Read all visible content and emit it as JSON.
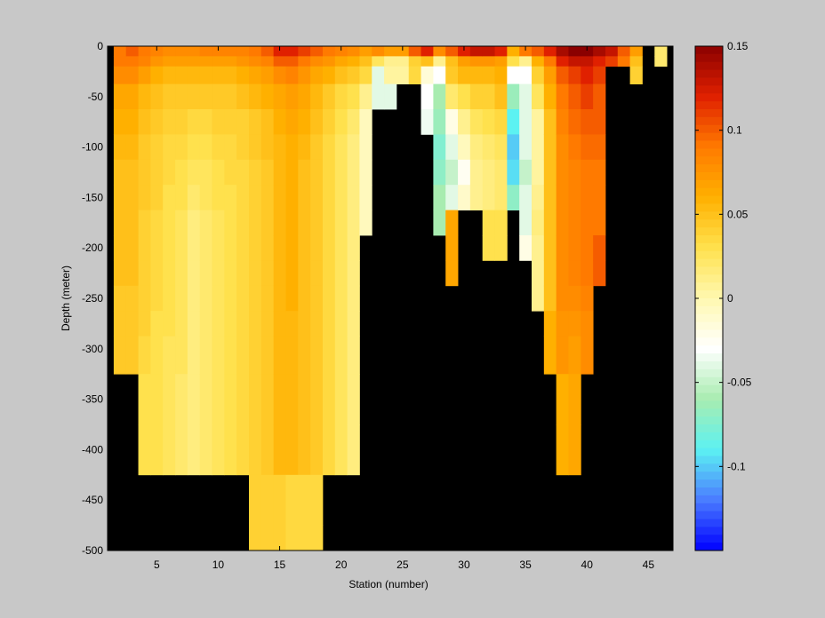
{
  "chart_data": {
    "type": "heatmap",
    "title": "",
    "xlabel": "Station (number)",
    "ylabel": "Depth (meter)",
    "xlim": [
      1,
      47
    ],
    "ylim": [
      -500,
      0
    ],
    "x_ticks": [
      5,
      10,
      15,
      20,
      25,
      30,
      35,
      40,
      45
    ],
    "y_ticks": [
      0,
      -50,
      -100,
      -150,
      -200,
      -250,
      -300,
      -350,
      -400,
      -450,
      -500
    ],
    "clim": [
      -0.15,
      0.15
    ],
    "colorbar_ticks": [
      0.15,
      0.1,
      0.05,
      0,
      -0.05,
      -0.1
    ],
    "colormap": [
      "#0000ff",
      "#4a7cff",
      "#5cf2f2",
      "#a8ecb0",
      "#ffffff",
      "#fff8b0",
      "#ffe14d",
      "#ffb000",
      "#ff7a00",
      "#e02000",
      "#8b0000"
    ],
    "missing_color": "#000000",
    "stations": [
      2,
      3,
      4,
      5,
      6,
      7,
      8,
      9,
      10,
      11,
      12,
      13,
      14,
      15,
      16,
      17,
      18,
      19,
      20,
      21,
      22,
      23,
      24,
      25,
      26,
      27,
      28,
      29,
      30,
      31,
      32,
      33,
      34,
      35,
      36,
      37,
      38,
      39,
      40,
      41,
      42,
      43,
      44,
      45,
      46
    ],
    "depths": [
      -5,
      -15,
      -25,
      -50,
      -75,
      -100,
      -125,
      -150,
      -175,
      -200,
      -225,
      -250,
      -275,
      -300,
      -350,
      -400,
      -450,
      -500
    ],
    "value_columns": [
      [
        0.09,
        0.09,
        0.08,
        0.065,
        0.06,
        0.055,
        0.05,
        0.05,
        0.05,
        0.05,
        0.05,
        0.045,
        0.045,
        0.045,
        null,
        null,
        null,
        null
      ],
      [
        0.1,
        0.09,
        0.08,
        0.065,
        0.06,
        0.055,
        0.05,
        0.05,
        0.05,
        0.05,
        0.05,
        0.045,
        0.045,
        0.045,
        null,
        null,
        null,
        null
      ],
      [
        0.09,
        0.085,
        0.07,
        0.055,
        0.05,
        0.045,
        0.045,
        0.045,
        0.04,
        0.04,
        0.04,
        0.04,
        0.04,
        0.035,
        0.03,
        0.03,
        null,
        null
      ],
      [
        0.085,
        0.075,
        0.06,
        0.05,
        0.045,
        0.04,
        0.04,
        0.04,
        0.035,
        0.035,
        0.035,
        0.035,
        0.03,
        0.03,
        0.03,
        0.03,
        null,
        null
      ],
      [
        0.08,
        0.07,
        0.055,
        0.045,
        0.04,
        0.035,
        0.035,
        0.03,
        0.03,
        0.03,
        0.03,
        0.03,
        0.03,
        0.025,
        0.025,
        0.025,
        null,
        null
      ],
      [
        0.08,
        0.07,
        0.055,
        0.045,
        0.04,
        0.035,
        0.03,
        0.03,
        0.025,
        0.025,
        0.025,
        0.025,
        0.025,
        0.025,
        0.02,
        0.02,
        null,
        null
      ],
      [
        0.08,
        0.07,
        0.055,
        0.045,
        0.035,
        0.03,
        0.025,
        0.02,
        0.015,
        0.015,
        0.015,
        0.015,
        0.015,
        0.015,
        0.015,
        0.015,
        null,
        null
      ],
      [
        0.085,
        0.07,
        0.055,
        0.045,
        0.035,
        0.03,
        0.025,
        0.025,
        0.02,
        0.02,
        0.02,
        0.02,
        0.02,
        0.02,
        0.02,
        0.02,
        null,
        null
      ],
      [
        0.085,
        0.07,
        0.055,
        0.045,
        0.04,
        0.035,
        0.03,
        0.03,
        0.025,
        0.025,
        0.025,
        0.025,
        0.025,
        0.025,
        0.025,
        0.025,
        null,
        null
      ],
      [
        0.085,
        0.07,
        0.055,
        0.045,
        0.04,
        0.035,
        0.035,
        0.03,
        0.03,
        0.03,
        0.03,
        0.03,
        0.03,
        0.03,
        0.03,
        0.03,
        null,
        null
      ],
      [
        0.085,
        0.075,
        0.06,
        0.05,
        0.04,
        0.04,
        0.035,
        0.035,
        0.035,
        0.035,
        0.035,
        0.035,
        0.035,
        0.035,
        0.035,
        0.035,
        null,
        null
      ],
      [
        0.09,
        0.08,
        0.065,
        0.055,
        0.045,
        0.045,
        0.04,
        0.04,
        0.04,
        0.04,
        0.04,
        0.04,
        0.04,
        0.04,
        0.04,
        0.04,
        0.04,
        0.04
      ],
      [
        0.1,
        0.085,
        0.07,
        0.06,
        0.05,
        0.05,
        0.045,
        0.045,
        0.045,
        0.045,
        0.045,
        0.045,
        0.045,
        0.045,
        0.045,
        0.045,
        0.04,
        0.04
      ],
      [
        0.12,
        0.1,
        0.08,
        0.065,
        0.06,
        0.055,
        0.055,
        0.055,
        0.055,
        0.055,
        0.055,
        0.055,
        0.055,
        0.055,
        0.055,
        0.055,
        0.04,
        0.04
      ],
      [
        0.12,
        0.1,
        0.085,
        0.07,
        0.065,
        0.06,
        0.06,
        0.06,
        0.06,
        0.06,
        0.06,
        0.06,
        0.055,
        0.055,
        0.055,
        0.055,
        0.035,
        0.035
      ],
      [
        0.11,
        0.09,
        0.075,
        0.065,
        0.06,
        0.055,
        0.05,
        0.05,
        0.05,
        0.05,
        0.05,
        0.05,
        0.05,
        0.05,
        0.05,
        0.05,
        0.035,
        0.035
      ],
      [
        0.1,
        0.08,
        0.065,
        0.055,
        0.05,
        0.045,
        0.045,
        0.045,
        0.045,
        0.045,
        0.045,
        0.045,
        0.045,
        0.045,
        0.045,
        0.045,
        0.035,
        0.035
      ],
      [
        0.09,
        0.075,
        0.06,
        0.045,
        0.04,
        0.035,
        0.035,
        0.035,
        0.035,
        0.035,
        0.035,
        0.035,
        0.035,
        0.035,
        0.035,
        0.035,
        null,
        null
      ],
      [
        0.085,
        0.065,
        0.05,
        0.035,
        0.03,
        0.025,
        0.025,
        0.025,
        0.025,
        0.025,
        0.025,
        0.025,
        0.025,
        0.025,
        0.025,
        0.025,
        null,
        null
      ],
      [
        0.08,
        0.06,
        0.045,
        0.03,
        0.02,
        0.015,
        0.015,
        0.015,
        0.015,
        0.015,
        0.015,
        0.015,
        0.015,
        0.015,
        0.015,
        0.015,
        null,
        null
      ],
      [
        0.07,
        0.05,
        0.035,
        0.01,
        -0.005,
        -0.005,
        -0.005,
        -0.005,
        -0.005,
        null,
        null,
        null,
        null,
        null,
        null,
        null,
        null,
        null
      ],
      [
        0.08,
        0.025,
        -0.04,
        -0.04,
        null,
        null,
        null,
        null,
        null,
        null,
        null,
        null,
        null,
        null,
        null,
        null,
        null,
        null
      ],
      [
        0.07,
        0.01,
        0.005,
        -0.04,
        null,
        null,
        null,
        null,
        null,
        null,
        null,
        null,
        null,
        null,
        null,
        null,
        null,
        null
      ],
      [
        0.07,
        0.01,
        0.005,
        null,
        null,
        null,
        null,
        null,
        null,
        null,
        null,
        null,
        null,
        null,
        null,
        null,
        null,
        null
      ],
      [
        0.1,
        0.04,
        0.035,
        null,
        null,
        null,
        null,
        null,
        null,
        null,
        null,
        null,
        null,
        null,
        null,
        null,
        null,
        null
      ],
      [
        0.12,
        0.05,
        -0.015,
        -0.03,
        -0.035,
        null,
        null,
        null,
        null,
        null,
        null,
        null,
        null,
        null,
        null,
        null,
        null,
        null
      ],
      [
        0.08,
        0.01,
        -0.03,
        -0.06,
        -0.065,
        -0.075,
        -0.07,
        -0.06,
        -0.06,
        null,
        null,
        null,
        null,
        null,
        null,
        null,
        null,
        null
      ],
      [
        0.1,
        0.05,
        0.045,
        0.02,
        -0.02,
        -0.04,
        -0.05,
        -0.04,
        0.065,
        0.065,
        0.065,
        null,
        null,
        null,
        null,
        null,
        null,
        null
      ],
      [
        0.12,
        0.07,
        0.055,
        0.03,
        0.01,
        -0.005,
        -0.025,
        -0.01,
        null,
        null,
        null,
        null,
        null,
        null,
        null,
        null,
        null,
        null
      ],
      [
        0.13,
        0.075,
        0.055,
        0.04,
        0.025,
        0.015,
        0.01,
        0.01,
        null,
        null,
        null,
        null,
        null,
        null,
        null,
        null,
        null,
        null
      ],
      [
        0.13,
        0.075,
        0.055,
        0.04,
        0.03,
        0.02,
        0.015,
        0.015,
        0.03,
        0.03,
        null,
        null,
        null,
        null,
        null,
        null,
        null,
        null
      ],
      [
        0.12,
        0.07,
        0.06,
        0.05,
        0.035,
        0.025,
        0.02,
        0.02,
        0.03,
        0.03,
        null,
        null,
        null,
        null,
        null,
        null,
        null,
        null
      ],
      [
        0.06,
        0.03,
        -0.03,
        -0.065,
        -0.09,
        -0.1,
        -0.095,
        -0.07,
        null,
        null,
        null,
        null,
        null,
        null,
        null,
        null,
        null,
        null
      ],
      [
        0.09,
        0.01,
        -0.03,
        -0.04,
        -0.04,
        -0.04,
        -0.05,
        -0.04,
        -0.04,
        -0.02,
        null,
        null,
        null,
        null,
        null,
        null,
        null,
        null
      ],
      [
        0.1,
        0.06,
        0.04,
        0.025,
        0.005,
        0.005,
        0.005,
        0.01,
        0.015,
        0.01,
        0.01,
        0.01,
        null,
        null,
        null,
        null,
        null,
        null
      ],
      [
        0.12,
        0.09,
        0.07,
        0.06,
        0.05,
        0.05,
        0.05,
        0.05,
        0.05,
        0.05,
        0.05,
        0.05,
        0.06,
        0.06,
        null,
        null,
        null,
        null
      ],
      [
        0.14,
        0.12,
        0.1,
        0.09,
        0.085,
        0.08,
        0.08,
        0.08,
        0.08,
        0.08,
        0.08,
        0.08,
        0.075,
        0.075,
        0.06,
        0.06,
        null,
        null
      ],
      [
        0.15,
        0.13,
        0.11,
        0.1,
        0.095,
        0.09,
        0.085,
        0.085,
        0.085,
        0.085,
        0.085,
        0.08,
        0.075,
        0.07,
        0.065,
        0.065,
        null,
        null
      ],
      [
        0.15,
        0.13,
        0.12,
        0.11,
        0.1,
        0.095,
        0.09,
        0.09,
        0.09,
        0.09,
        0.09,
        0.085,
        0.08,
        0.08,
        null,
        null,
        null,
        null
      ],
      [
        0.14,
        0.12,
        0.11,
        0.1,
        0.1,
        0.095,
        0.09,
        0.09,
        0.09,
        0.1,
        0.1,
        null,
        null,
        null,
        null,
        null,
        null,
        null
      ],
      [
        0.13,
        0.11,
        null,
        null,
        null,
        null,
        null,
        null,
        null,
        null,
        null,
        null,
        null,
        null,
        null,
        null,
        null,
        null
      ],
      [
        0.1,
        0.09,
        null,
        null,
        null,
        null,
        null,
        null,
        null,
        null,
        null,
        null,
        null,
        null,
        null,
        null,
        null,
        null
      ],
      [
        0.07,
        0.05,
        0.04,
        null,
        null,
        null,
        null,
        null,
        null,
        null,
        null,
        null,
        null,
        null,
        null,
        null,
        null,
        null
      ],
      [
        null,
        null,
        null,
        null,
        null,
        null,
        null,
        null,
        null,
        null,
        null,
        null,
        null,
        null,
        null,
        null,
        null,
        null
      ],
      [
        0.02,
        0.02,
        null,
        null,
        null,
        null,
        null,
        null,
        null,
        null,
        null,
        null,
        null,
        null,
        null,
        null,
        null,
        null
      ]
    ]
  }
}
